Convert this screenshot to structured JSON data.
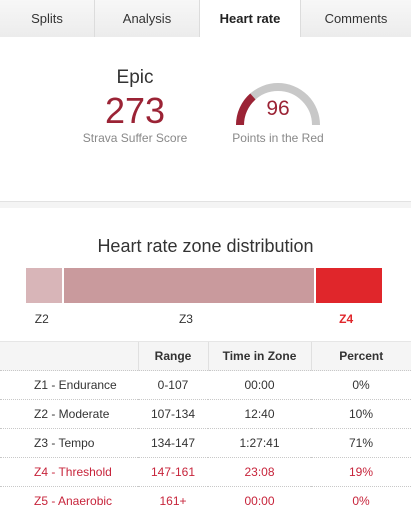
{
  "tabs": [
    {
      "label": "Splits",
      "active": false
    },
    {
      "label": "Analysis",
      "active": false
    },
    {
      "label": "Heart rate",
      "active": true
    },
    {
      "label": "Comments",
      "active": false
    }
  ],
  "summary": {
    "suffer_level": "Epic",
    "suffer_score": "273",
    "suffer_label": "Strava Suffer Score",
    "points_in_red": "96",
    "points_label": "Points in the Red",
    "gauge_fraction": 0.27
  },
  "distribution": {
    "title": "Heart rate zone distribution",
    "zones": [
      {
        "label": "Z2",
        "percent": 10,
        "color": "#d8b5b8"
      },
      {
        "label": "Z3",
        "percent": 71,
        "color": "#c99a9d"
      },
      {
        "label": "Z4",
        "percent": 19,
        "color": "#e0262b"
      }
    ]
  },
  "table": {
    "headers": [
      "",
      "Range",
      "Time in Zone",
      "Percent"
    ],
    "rows": [
      {
        "zone": "Z1 - Endurance",
        "range": "0-107",
        "time": "00:00",
        "percent": "0%",
        "highlight": false
      },
      {
        "zone": "Z2 - Moderate",
        "range": "107-134",
        "time": "12:40",
        "percent": "10%",
        "highlight": false
      },
      {
        "zone": "Z3 - Tempo",
        "range": "134-147",
        "time": "1:27:41",
        "percent": "71%",
        "highlight": false
      },
      {
        "zone": "Z4 - Threshold",
        "range": "147-161",
        "time": "23:08",
        "percent": "19%",
        "highlight": true
      },
      {
        "zone": "Z5 - Anaerobic",
        "range": "161+",
        "time": "00:00",
        "percent": "0%",
        "highlight": true
      }
    ]
  },
  "colors": {
    "accent_red": "#9b2335",
    "zone_red": "#e0262b",
    "gauge_track": "#c8c8c8"
  }
}
